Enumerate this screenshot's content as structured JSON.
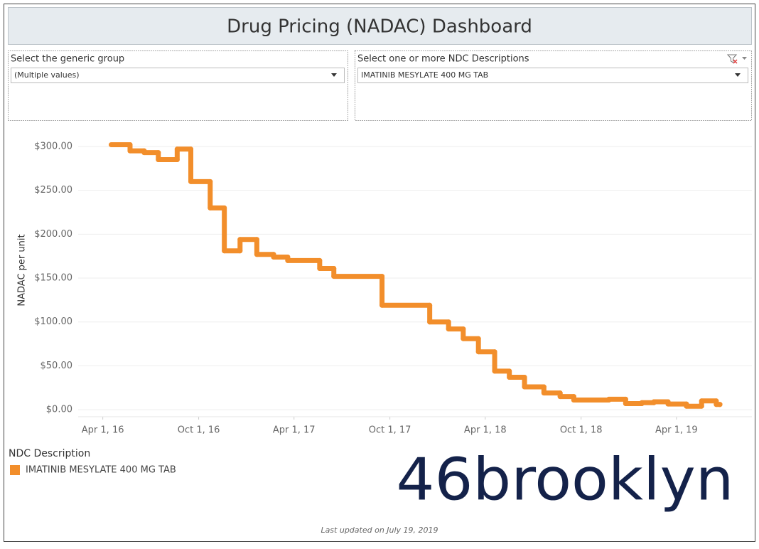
{
  "header": {
    "title": "Drug Pricing (NADAC) Dashboard"
  },
  "filters": [
    {
      "label": "Select the generic group",
      "value": "(Multiple values)"
    },
    {
      "label": "Select one or more NDC Descriptions",
      "value": "IMATINIB MESYLATE 400 MG TAB"
    }
  ],
  "chart_data": {
    "type": "line",
    "step": true,
    "y_label": "NADAC per unit",
    "x": [
      "2016-04-17",
      "2016-05-23",
      "2016-06-19",
      "2016-07-16",
      "2016-08-21",
      "2016-09-16",
      "2016-10-23",
      "2016-11-19",
      "2016-12-19",
      "2017-01-20",
      "2017-02-21",
      "2017-03-20",
      "2017-05-20",
      "2017-06-16",
      "2017-09-16",
      "2017-12-16",
      "2018-01-21",
      "2018-02-18",
      "2018-03-19",
      "2018-04-19",
      "2018-05-17",
      "2018-06-15",
      "2018-07-22",
      "2018-08-22",
      "2018-09-17",
      "2018-10-20",
      "2018-11-23",
      "2018-12-25",
      "2019-01-25",
      "2019-02-17",
      "2019-03-16",
      "2019-04-20",
      "2019-05-19",
      "2019-06-16",
      "2019-06-23"
    ],
    "series": [
      {
        "name": "IMATINIB MESYLATE 400 MG TAB",
        "color": "#f28e2b",
        "values": [
          302,
          295,
          293,
          285,
          297,
          260,
          230,
          181,
          194,
          177,
          174,
          170,
          161,
          152,
          119,
          100,
          92,
          81,
          66,
          44,
          37,
          26,
          19,
          15,
          11,
          11,
          12,
          7,
          8,
          9,
          6.5,
          4,
          10,
          6,
          6
        ]
      }
    ],
    "xlim": [
      "2016-02-14",
      "2019-08-23"
    ],
    "xticks": [
      {
        "value": "2016-04-01",
        "label": "Apr 1, 16"
      },
      {
        "value": "2016-10-01",
        "label": "Oct 1, 16"
      },
      {
        "value": "2017-04-01",
        "label": "Apr 1, 17"
      },
      {
        "value": "2017-10-01",
        "label": "Oct 1, 17"
      },
      {
        "value": "2018-04-01",
        "label": "Apr 1, 18"
      },
      {
        "value": "2018-10-01",
        "label": "Oct 1, 18"
      },
      {
        "value": "2019-04-01",
        "label": "Apr 1, 19"
      }
    ],
    "ylim": [
      -8,
      317
    ],
    "yticks": [
      {
        "value": 0,
        "label": "$0.00"
      },
      {
        "value": 50,
        "label": "$50.00"
      },
      {
        "value": 100,
        "label": "$100.00"
      },
      {
        "value": 150,
        "label": "$150.00"
      },
      {
        "value": 200,
        "label": "$200.00"
      },
      {
        "value": 250,
        "label": "$250.00"
      },
      {
        "value": 300,
        "label": "$300.00"
      }
    ],
    "grid": true,
    "legend_title": "NDC Description"
  },
  "logo": "46brooklyn",
  "footer": "Last updated on July 19, 2019"
}
